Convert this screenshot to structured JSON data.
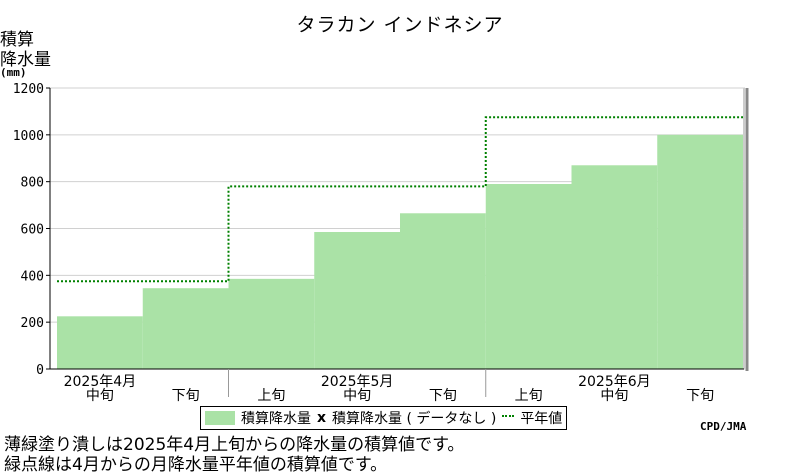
{
  "title": "タラカン インドネシア",
  "y_axis": {
    "label_line1": "積算",
    "label_line2": "降水量",
    "unit": "(mm)"
  },
  "legend": {
    "bars_label": "積算降水量",
    "nodata_marker": "x",
    "nodata_label": "積算降水量 ( データなし )",
    "line_label": "平年値"
  },
  "credit": "CPD/JMA",
  "notes": [
    "薄緑塗り潰しは2025年4月上旬からの降水量の積算値です。",
    "緑点線は4月からの月降水量平年値の積算値です。"
  ],
  "chart_data": {
    "type": "area",
    "title": "タラカン インドネシア",
    "ylabel": "積算降水量 (mm)",
    "ylim": [
      0,
      1200
    ],
    "yticks": [
      0,
      200,
      400,
      600,
      800,
      1000,
      1200
    ],
    "grid": true,
    "periods": [
      "中旬",
      "下旬",
      "上旬",
      "中旬",
      "下旬",
      "上旬",
      "中旬",
      "下旬"
    ],
    "months": [
      {
        "label": "2025年4月",
        "period_start": 0
      },
      {
        "label": "2025年5月",
        "period_start": 2
      },
      {
        "label": "2025年6月",
        "period_start": 5
      }
    ],
    "series": [
      {
        "name": "積算降水量",
        "values": [
          225,
          345,
          385,
          585,
          665,
          790,
          870,
          1000
        ],
        "color": "#aae2a6"
      },
      {
        "name": "平年値",
        "values": [
          375,
          375,
          780,
          780,
          780,
          1075,
          1075,
          1075
        ],
        "color": "#008000",
        "style": "dotted-step"
      }
    ]
  }
}
